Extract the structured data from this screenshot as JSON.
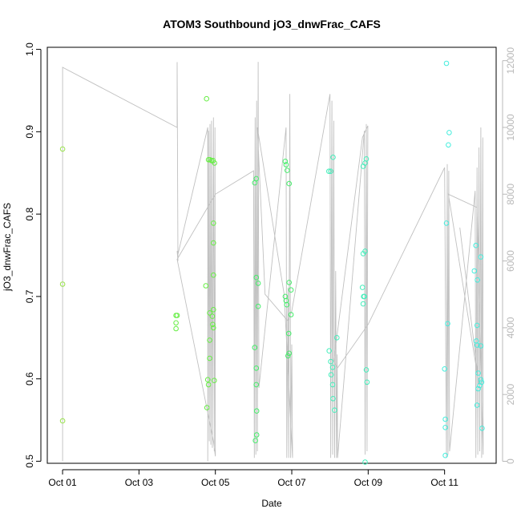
{
  "chart_data": {
    "type": "scatter",
    "title": "ATOM3 Southbound jO3_dnwFrac_CAFS",
    "xlabel": "Date",
    "ylabel": "jO3_dnwFrac_CAFS",
    "x_tick_labels": [
      "Oct 01",
      "Oct 03",
      "Oct 05",
      "Oct 07",
      "Oct 09",
      "Oct 11"
    ],
    "x_tick_days": [
      1,
      3,
      5,
      7,
      9,
      11
    ],
    "xlim_days": [
      0.6,
      12.35
    ],
    "ylim": [
      0.4975,
      1.0025
    ],
    "y_ticks": [
      "0.5",
      "0.6",
      "0.7",
      "0.8",
      "0.9",
      "1.0"
    ],
    "y2_ticks": [
      "0",
      "2000",
      "4000",
      "6000",
      "8000",
      "10000",
      "12000"
    ],
    "y2lim": [
      -60,
      12400
    ],
    "colors": {
      "line": "#c0c0c0",
      "axis": "#000000",
      "axis_right": "#b8b8b8"
    },
    "series": [
      {
        "color": "#98e34a",
        "points": [
          [
            1.0,
            0.879
          ],
          [
            1.0,
            0.715
          ],
          [
            1.0,
            0.549
          ]
        ]
      },
      {
        "color": "#66ee44",
        "points": [
          [
            3.97,
            0.677
          ],
          [
            4.0,
            0.677
          ],
          [
            3.97,
            0.668
          ],
          [
            3.97,
            0.661
          ],
          [
            4.77,
            0.94
          ],
          [
            4.82,
            0.866
          ],
          [
            4.86,
            0.866
          ],
          [
            4.9,
            0.865
          ],
          [
            4.94,
            0.865
          ],
          [
            4.98,
            0.862
          ],
          [
            4.95,
            0.789
          ],
          [
            4.95,
            0.765
          ],
          [
            4.95,
            0.726
          ],
          [
            4.75,
            0.713
          ],
          [
            4.95,
            0.684
          ],
          [
            4.85,
            0.68
          ],
          [
            4.92,
            0.676
          ],
          [
            4.93,
            0.666
          ],
          [
            4.95,
            0.662
          ],
          [
            4.85,
            0.647
          ],
          [
            4.85,
            0.625
          ],
          [
            4.8,
            0.599
          ],
          [
            4.97,
            0.598
          ],
          [
            4.82,
            0.593
          ],
          [
            4.78,
            0.565
          ]
        ]
      },
      {
        "color": "#44ee6a",
        "points": [
          [
            6.07,
            0.843
          ],
          [
            6.03,
            0.838
          ],
          [
            6.07,
            0.723
          ],
          [
            6.12,
            0.716
          ],
          [
            6.12,
            0.688
          ],
          [
            6.03,
            0.638
          ],
          [
            6.07,
            0.613
          ],
          [
            6.07,
            0.593
          ],
          [
            6.08,
            0.561
          ],
          [
            6.08,
            0.532
          ],
          [
            6.05,
            0.525
          ],
          [
            6.83,
            0.864
          ],
          [
            6.85,
            0.86
          ],
          [
            6.88,
            0.853
          ],
          [
            6.93,
            0.837
          ],
          [
            6.93,
            0.717
          ],
          [
            6.98,
            0.708
          ],
          [
            6.83,
            0.7
          ],
          [
            6.85,
            0.695
          ],
          [
            6.87,
            0.69
          ],
          [
            6.98,
            0.678
          ],
          [
            6.92,
            0.655
          ],
          [
            6.93,
            0.631
          ],
          [
            6.9,
            0.628
          ]
        ]
      },
      {
        "color": "#44eebb",
        "points": [
          [
            7.97,
            0.852
          ],
          [
            8.02,
            0.852
          ],
          [
            8.08,
            0.869
          ],
          [
            7.98,
            0.634
          ],
          [
            8.02,
            0.621
          ],
          [
            8.07,
            0.614
          ],
          [
            8.03,
            0.605
          ],
          [
            8.07,
            0.593
          ],
          [
            8.08,
            0.576
          ],
          [
            8.12,
            0.562
          ],
          [
            8.18,
            0.65
          ],
          [
            8.87,
            0.858
          ],
          [
            8.92,
            0.862
          ],
          [
            8.95,
            0.867
          ],
          [
            8.92,
            0.755
          ],
          [
            8.87,
            0.752
          ],
          [
            8.85,
            0.711
          ],
          [
            8.88,
            0.7
          ],
          [
            8.9,
            0.7
          ],
          [
            8.87,
            0.691
          ],
          [
            8.95,
            0.611
          ],
          [
            8.97,
            0.596
          ],
          [
            8.92,
            0.499
          ]
        ]
      },
      {
        "color": "#44eedd",
        "points": [
          [
            11.05,
            0.983
          ],
          [
            11.12,
            0.899
          ],
          [
            11.1,
            0.884
          ],
          [
            11.05,
            0.789
          ],
          [
            11.08,
            0.667
          ],
          [
            11.0,
            0.612
          ],
          [
            11.02,
            0.551
          ],
          [
            11.02,
            0.541
          ],
          [
            11.02,
            0.507
          ],
          [
            11.82,
            0.762
          ],
          [
            11.95,
            0.748
          ],
          [
            11.78,
            0.731
          ],
          [
            11.86,
            0.72
          ],
          [
            11.85,
            0.665
          ],
          [
            11.83,
            0.646
          ],
          [
            11.85,
            0.641
          ],
          [
            11.95,
            0.64
          ],
          [
            11.88,
            0.607
          ],
          [
            11.95,
            0.599
          ],
          [
            11.97,
            0.596
          ],
          [
            11.92,
            0.592
          ],
          [
            11.88,
            0.588
          ],
          [
            11.85,
            0.568
          ],
          [
            11.98,
            0.54
          ]
        ]
      }
    ],
    "line_series": {
      "axis": "right",
      "points": [
        [
          1.0,
          0
        ],
        [
          1.0,
          11800
        ],
        [
          4.0,
          10000
        ],
        [
          4.0,
          11955
        ],
        [
          4.02,
          6000
        ],
        [
          4.0,
          6300
        ],
        [
          4.02,
          6200
        ],
        [
          4.8,
          10000
        ],
        [
          4.8,
          0
        ],
        [
          4.82,
          9900
        ],
        [
          4.84,
          600
        ],
        [
          4.86,
          10100
        ],
        [
          4.88,
          500
        ],
        [
          4.9,
          10200
        ],
        [
          4.92,
          400
        ],
        [
          4.95,
          10300
        ],
        [
          4.97,
          300
        ],
        [
          4.99,
          10000
        ],
        [
          5.0,
          150
        ],
        [
          4.95,
          600
        ],
        [
          4.0,
          6050
        ],
        [
          5.0,
          8000
        ],
        [
          6.0,
          8700
        ],
        [
          6.02,
          100
        ],
        [
          6.04,
          10300
        ],
        [
          6.06,
          200
        ],
        [
          6.08,
          10800
        ],
        [
          6.1,
          300
        ],
        [
          6.12,
          11960
        ],
        [
          6.14,
          2200
        ],
        [
          6.85,
          10000
        ],
        [
          6.87,
          100
        ],
        [
          6.9,
          5200
        ],
        [
          6.92,
          100
        ],
        [
          6.95,
          11000
        ],
        [
          6.97,
          100
        ],
        [
          7.0,
          3500
        ],
        [
          7.02,
          100
        ],
        [
          6.8,
          5000
        ],
        [
          6.1,
          10000
        ],
        [
          6.3,
          5000
        ],
        [
          6.9,
          4200
        ],
        [
          7.0,
          4500
        ],
        [
          8.0,
          11000
        ],
        [
          8.02,
          100
        ],
        [
          8.05,
          10800
        ],
        [
          8.07,
          200
        ],
        [
          8.1,
          10200
        ],
        [
          8.12,
          100
        ],
        [
          8.15,
          5700
        ],
        [
          8.17,
          100
        ],
        [
          8.19,
          3200
        ],
        [
          8.2,
          100
        ],
        [
          8.9,
          9900
        ],
        [
          8.92,
          200
        ],
        [
          8.95,
          10100
        ],
        [
          8.97,
          300
        ],
        [
          8.99,
          10050
        ],
        [
          8.85,
          9700
        ],
        [
          8.1,
          3000
        ],
        [
          8.2,
          2800
        ],
        [
          9.0,
          4100
        ],
        [
          11.0,
          8800
        ],
        [
          11.05,
          100
        ],
        [
          11.07,
          8900
        ],
        [
          11.09,
          200
        ],
        [
          11.11,
          8700
        ],
        [
          11.13,
          300
        ],
        [
          11.8,
          8100
        ],
        [
          11.82,
          100
        ],
        [
          11.85,
          8800
        ],
        [
          11.87,
          200
        ],
        [
          11.9,
          9400
        ],
        [
          11.92,
          300
        ],
        [
          11.95,
          10000
        ],
        [
          11.97,
          100
        ],
        [
          12.0,
          9700
        ],
        [
          12.01,
          200
        ],
        [
          11.85,
          7600
        ],
        [
          11.1,
          8000
        ],
        [
          11.9,
          2300
        ],
        [
          11.4,
          7000
        ]
      ]
    }
  }
}
